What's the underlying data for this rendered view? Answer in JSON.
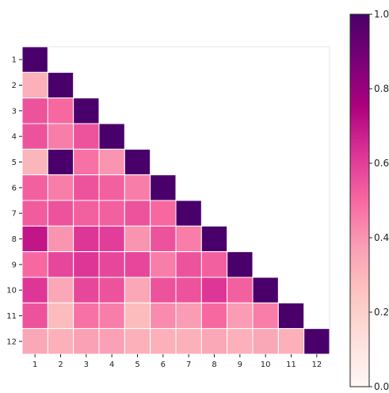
{
  "chart_data": {
    "type": "heatmap",
    "colormap": "RdPu",
    "row_labels": [
      "1",
      "2",
      "3",
      "4",
      "5",
      "6",
      "7",
      "8",
      "9",
      "10",
      "11",
      "12"
    ],
    "col_labels": [
      "1",
      "2",
      "3",
      "4",
      "5",
      "6",
      "7",
      "8",
      "9",
      "10",
      "11",
      "12"
    ],
    "matrix_shape": "lower-triangular including diagonal",
    "values": [
      [
        1.0
      ],
      [
        0.32,
        1.0
      ],
      [
        0.55,
        0.5,
        1.0
      ],
      [
        0.55,
        0.45,
        0.55,
        1.0
      ],
      [
        0.3,
        1.0,
        0.48,
        0.4,
        1.0
      ],
      [
        0.52,
        0.45,
        0.55,
        0.52,
        0.45,
        1.0
      ],
      [
        0.53,
        0.55,
        0.52,
        0.52,
        0.55,
        0.5,
        1.0
      ],
      [
        0.7,
        0.4,
        0.62,
        0.6,
        0.4,
        0.55,
        0.45,
        1.0
      ],
      [
        0.5,
        0.58,
        0.62,
        0.58,
        0.58,
        0.45,
        0.55,
        0.52,
        1.0
      ],
      [
        0.62,
        0.35,
        0.58,
        0.55,
        0.35,
        0.55,
        0.55,
        0.62,
        0.52,
        1.0
      ],
      [
        0.55,
        0.28,
        0.48,
        0.45,
        0.28,
        0.42,
        0.38,
        0.5,
        0.38,
        0.45,
        1.0
      ],
      [
        0.35,
        0.32,
        0.37,
        0.37,
        0.32,
        0.32,
        0.32,
        0.35,
        0.32,
        0.35,
        0.32,
        1.0
      ]
    ],
    "colorbar": {
      "range": [
        0.0,
        1.0
      ],
      "ticks": [
        0.0,
        0.2,
        0.4,
        0.6,
        0.8,
        1.0
      ],
      "tick_labels": [
        "0.0",
        "0.2",
        "0.4",
        "0.6",
        "0.8",
        "1.0"
      ]
    },
    "grid": false,
    "title": "",
    "xlabel": "",
    "ylabel": ""
  },
  "colors": {
    "colormap_stops": [
      "#fff7f3",
      "#fde0dd",
      "#fcc5c0",
      "#fa9fb5",
      "#f768a1",
      "#dd3497",
      "#ae017e",
      "#7a0177",
      "#49006a"
    ],
    "cell_border": "#ffffff",
    "axes_frame": "#e6e6e6"
  }
}
